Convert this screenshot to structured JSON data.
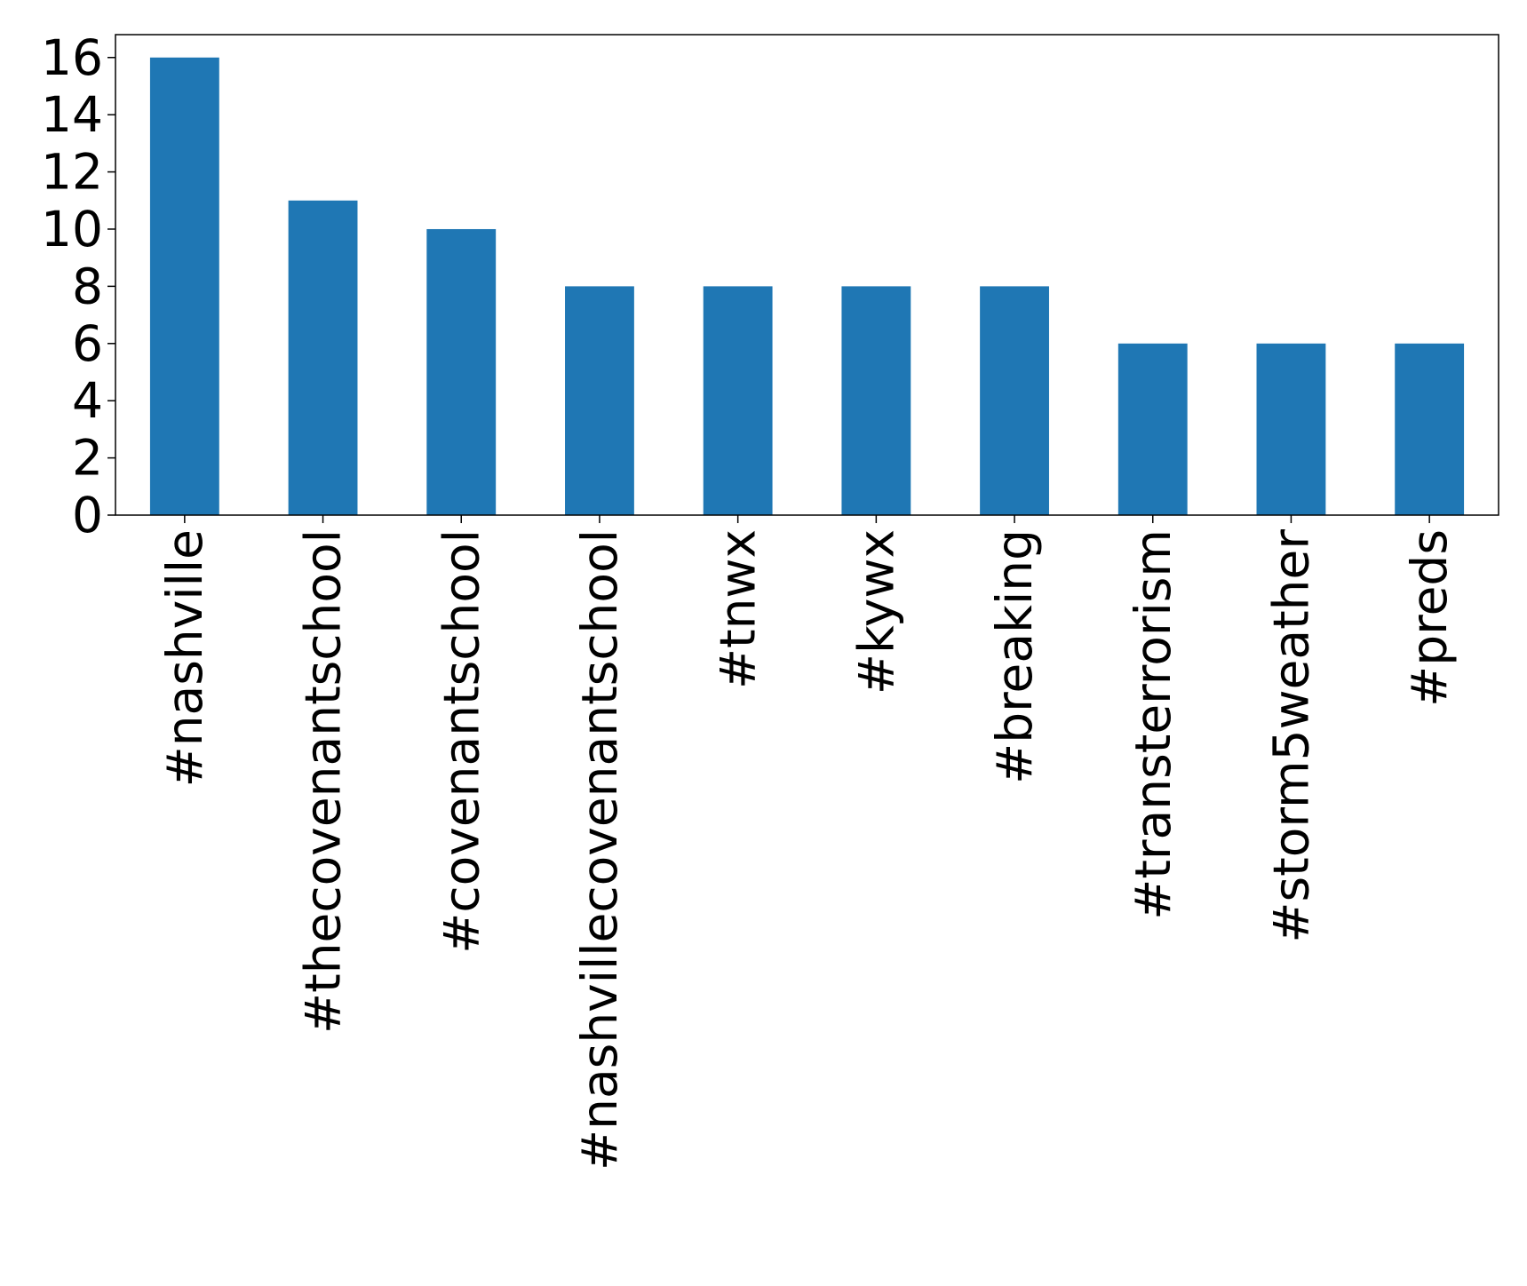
{
  "chart_data": {
    "type": "bar",
    "categories": [
      "#nashville",
      "#thecovenantschool",
      "#covenantschool",
      "#nashvillecovenantschool",
      "#tnwx",
      "#kywx",
      "#breaking",
      "#transterrorism",
      "#storm5weather",
      "#preds"
    ],
    "values": [
      16,
      11,
      10,
      8,
      8,
      8,
      8,
      6,
      6,
      6
    ],
    "color": "#1f77b4",
    "ylim": [
      0,
      16.8
    ],
    "yticks": [
      0,
      2,
      4,
      6,
      8,
      10,
      12,
      14,
      16
    ],
    "grid": false
  }
}
